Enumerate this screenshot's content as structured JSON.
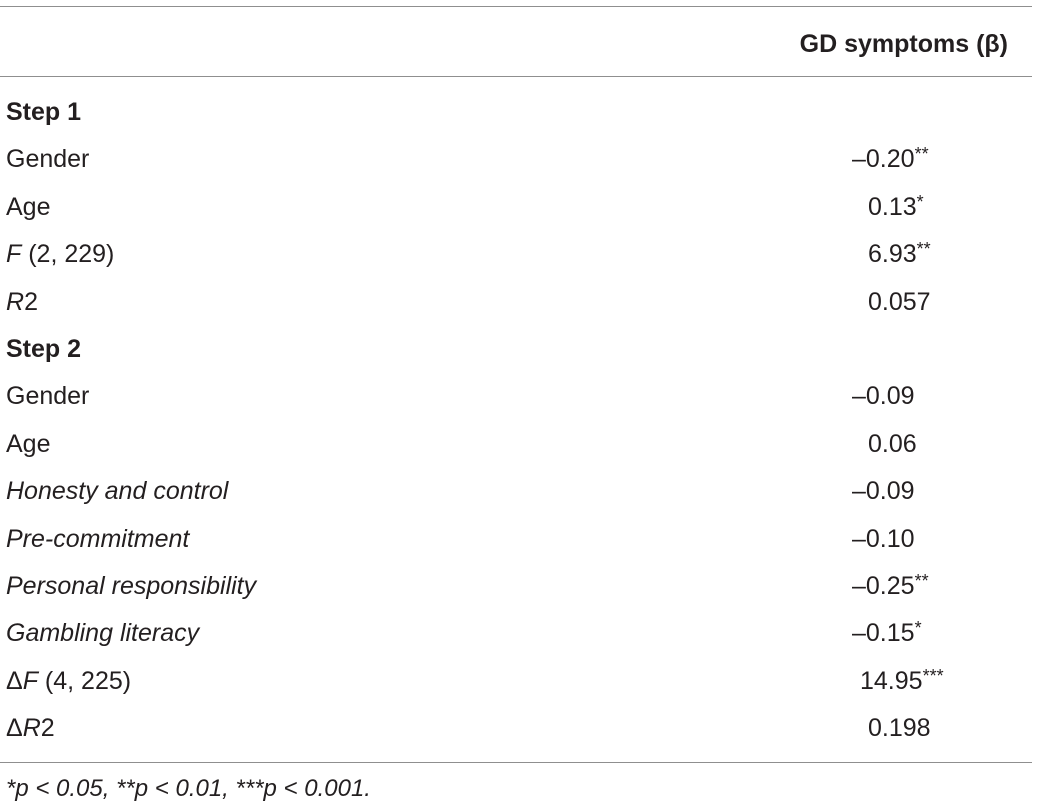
{
  "table": {
    "column_header": "GD symptoms (β)",
    "rows": [
      {
        "type": "section",
        "label": "Step 1",
        "value": ""
      },
      {
        "type": "plain",
        "label": "Gender",
        "value": "–0.20",
        "stars": "**"
      },
      {
        "type": "plain",
        "label": "Age",
        "value": "0.13",
        "stars": "*"
      },
      {
        "type": "stat",
        "label_italic": "F",
        "label_rest": " (2, 229)",
        "value": "6.93",
        "stars": "**"
      },
      {
        "type": "stat-sup",
        "label_italic": "R",
        "label_sup": "2",
        "value": "0.057",
        "stars": ""
      },
      {
        "type": "section",
        "label": "Step 2",
        "value": ""
      },
      {
        "type": "plain",
        "label": "Gender",
        "value": "–0.09",
        "stars": ""
      },
      {
        "type": "plain",
        "label": "Age",
        "value": "0.06",
        "stars": ""
      },
      {
        "type": "italic",
        "label": "Honesty and control",
        "value": "–0.09",
        "stars": ""
      },
      {
        "type": "italic",
        "label": "Pre-commitment",
        "value": "–0.10",
        "stars": ""
      },
      {
        "type": "italic",
        "label": "Personal responsibility",
        "value": "–0.25",
        "stars": "**"
      },
      {
        "type": "italic",
        "label": "Gambling literacy",
        "value": "–0.15",
        "stars": "*"
      },
      {
        "type": "delta-stat",
        "label_prefix": "Δ",
        "label_italic": "F",
        "label_rest": " (4, 225)",
        "value": "14.95",
        "stars": "***"
      },
      {
        "type": "delta-sup",
        "label_prefix": "Δ",
        "label_italic": "R",
        "label_sup": "2",
        "value": "0.198",
        "stars": ""
      }
    ],
    "footnote": "*p < 0.05, **p < 0.01, ***p < 0.001."
  }
}
